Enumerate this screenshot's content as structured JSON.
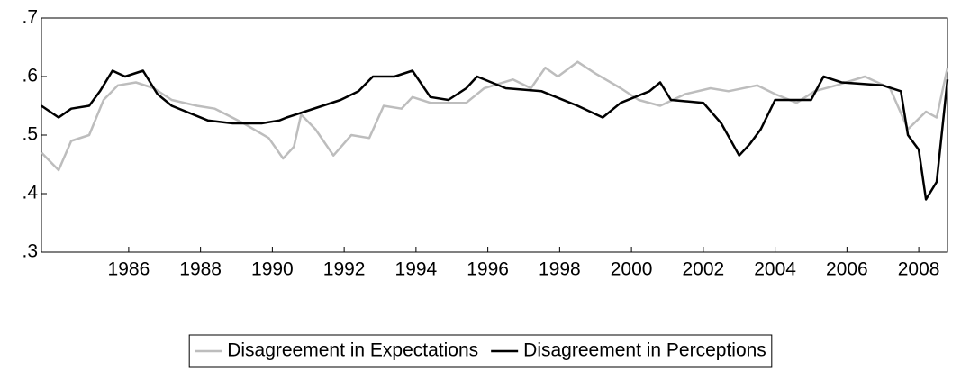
{
  "chart_data": {
    "type": "line",
    "xlim": [
      1983.57,
      2008.8
    ],
    "xticks": [
      1986,
      1988,
      1990,
      1992,
      1994,
      1996,
      1998,
      2000,
      2002,
      2004,
      2006,
      2008
    ],
    "ylim": [
      0.3,
      0.7
    ],
    "yticks": [
      {
        "value": 0.3,
        "label": ".3"
      },
      {
        "value": 0.4,
        "label": ".4"
      },
      {
        "value": 0.5,
        "label": ".5"
      },
      {
        "value": 0.6,
        "label": ".6"
      },
      {
        "value": 0.7,
        "label": ".7"
      }
    ],
    "legend": "bottom",
    "series": [
      {
        "name": "Disagreement in Expectations",
        "color": "#bdbdbd",
        "x": [
          1983.57,
          1984.05,
          1984.4,
          1984.9,
          1985.3,
          1985.7,
          1986.2,
          1986.7,
          1987.2,
          1987.9,
          1988.4,
          1989.2,
          1989.9,
          1990.3,
          1990.6,
          1990.8,
          1991.2,
          1991.7,
          1992.2,
          1992.7,
          1993.1,
          1993.6,
          1993.9,
          1994.4,
          1994.9,
          1995.4,
          1995.9,
          1996.7,
          1997.2,
          1997.6,
          1997.95,
          1998.5,
          1999.0,
          1999.7,
          2000.2,
          2000.8,
          2001.5,
          2002.2,
          2002.7,
          2003.5,
          2004.0,
          2004.6,
          2005.1,
          2005.7,
          2006.5,
          2007.2,
          2007.7,
          2008.2,
          2008.5,
          2008.8
        ],
        "values": [
          0.47,
          0.44,
          0.49,
          0.5,
          0.56,
          0.585,
          0.59,
          0.58,
          0.56,
          0.55,
          0.545,
          0.52,
          0.495,
          0.46,
          0.48,
          0.535,
          0.51,
          0.465,
          0.5,
          0.495,
          0.55,
          0.545,
          0.565,
          0.555,
          0.555,
          0.555,
          0.58,
          0.595,
          0.58,
          0.615,
          0.6,
          0.625,
          0.605,
          0.58,
          0.56,
          0.55,
          0.57,
          0.58,
          0.575,
          0.585,
          0.57,
          0.555,
          0.575,
          0.585,
          0.6,
          0.58,
          0.51,
          0.54,
          0.53,
          0.615
        ]
      },
      {
        "name": "Disagreement in Perceptions",
        "color": "#000000",
        "x": [
          1983.57,
          1984.05,
          1984.4,
          1984.9,
          1985.2,
          1985.55,
          1985.9,
          1986.4,
          1986.8,
          1987.2,
          1988.2,
          1988.9,
          1989.7,
          1990.2,
          1990.4,
          1990.9,
          1991.9,
          1992.4,
          1992.8,
          1993.4,
          1993.9,
          1994.4,
          1994.9,
          1995.4,
          1995.7,
          1996.5,
          1997.5,
          1998.5,
          1999.2,
          1999.7,
          2000.5,
          2000.8,
          2001.1,
          2002.0,
          2002.5,
          2003.0,
          2003.3,
          2003.6,
          2004.0,
          2005.0,
          2005.35,
          2005.85,
          2007.0,
          2007.5,
          2007.7,
          2008.0,
          2008.2,
          2008.5,
          2008.8
        ],
        "values": [
          0.55,
          0.53,
          0.545,
          0.55,
          0.575,
          0.61,
          0.6,
          0.61,
          0.57,
          0.55,
          0.525,
          0.52,
          0.52,
          0.525,
          0.53,
          0.54,
          0.56,
          0.575,
          0.6,
          0.6,
          0.61,
          0.565,
          0.56,
          0.58,
          0.6,
          0.58,
          0.575,
          0.55,
          0.53,
          0.555,
          0.575,
          0.59,
          0.56,
          0.555,
          0.52,
          0.465,
          0.485,
          0.51,
          0.56,
          0.56,
          0.6,
          0.59,
          0.585,
          0.575,
          0.5,
          0.475,
          0.39,
          0.42,
          0.595
        ]
      }
    ]
  }
}
